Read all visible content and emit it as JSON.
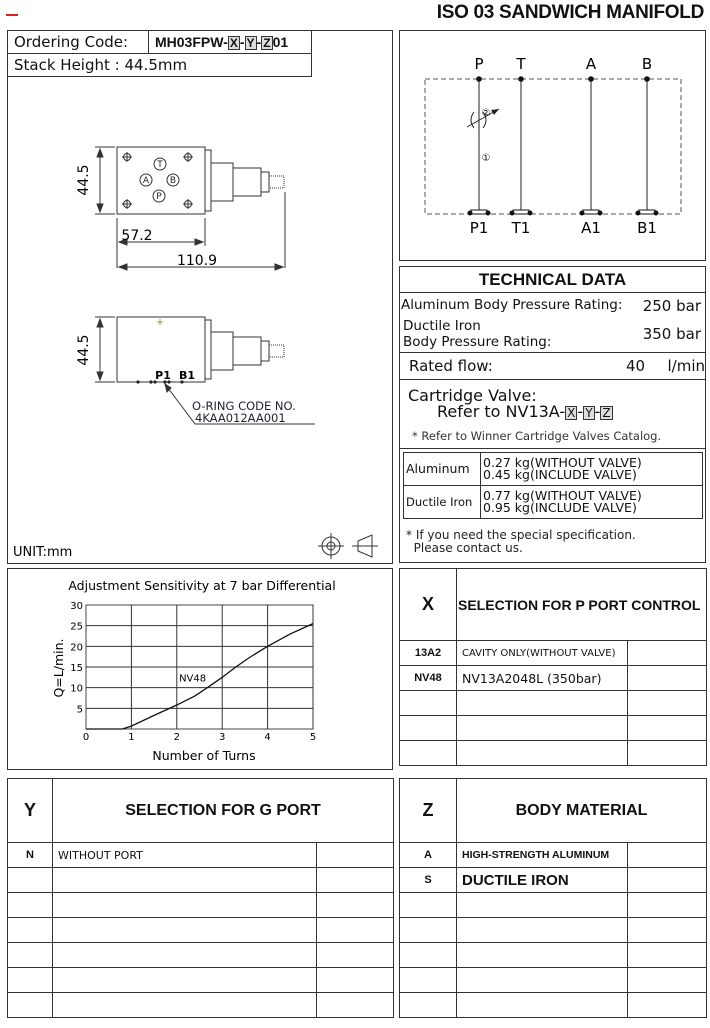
{
  "header": {
    "title": "ISO 03 SANDWICH MANIFOLD"
  },
  "ordering": {
    "label": "Ordering Code:",
    "code_prefix": "MH03FPW-",
    "x": "X",
    "y": "Y",
    "z": "Z",
    "code_suffix": "01",
    "sep": "-",
    "stack_height": "Stack Height : 44.5mm"
  },
  "drawing": {
    "dim_height_top": "44.5",
    "dim_width": "57.2",
    "dim_length": "110.9",
    "dim_height_side": "44.5",
    "port_t": "T",
    "port_a": "A",
    "port_b": "B",
    "port_p": "P",
    "side_p1": "P1",
    "side_b1": "B1",
    "oring_label": "O-RING CODE NO.",
    "oring_code": "4KAA012AA001",
    "unit": "UNIT:mm"
  },
  "schematic": {
    "top_ports": [
      "P",
      "T",
      "A",
      "B"
    ],
    "bottom_ports": [
      "P1",
      "T1",
      "A1",
      "B1"
    ],
    "mark_2": "②",
    "mark_1": "①"
  },
  "technical": {
    "title": "TECHNICAL DATA",
    "al_pressure_label": "Aluminum Body Pressure Rating:",
    "al_pressure_value": "250 bar",
    "di_pressure_label_1": "Ductile Iron",
    "di_pressure_label_2": "Body Pressure Rating:",
    "di_pressure_value": "350 bar",
    "flow_label": "Rated flow:",
    "flow_value": "40",
    "flow_unit": "l/min",
    "cartridge_label": "Cartridge Valve:",
    "cartridge_ref": "Refer to NV13A-",
    "catalog_note": "* Refer to Winner Cartridge Valves Catalog.",
    "weights": [
      {
        "material": "Aluminum",
        "without": "0.27  kg(WITHOUT VALVE)",
        "include": "0.45  kg(INCLUDE VALVE)"
      },
      {
        "material": "Ductile Iron",
        "without": "0.77  kg(WITHOUT VALVE)",
        "include": "0.95  kg(INCLUDE VALVE)"
      }
    ],
    "special_note_1": "* If you need the special specification.",
    "special_note_2": "Please contact us."
  },
  "chart_data": {
    "type": "line",
    "title": "Adjustment Sensitivity at 7 bar Differential",
    "xlabel": "Number of Turns",
    "ylabel": "Q=L/min.",
    "xlim": [
      0,
      5
    ],
    "ylim": [
      0,
      30
    ],
    "xticks": [
      "0",
      "1",
      "2",
      "3",
      "4",
      "5"
    ],
    "yticks": [
      "5",
      "10",
      "15",
      "20",
      "25",
      "30"
    ],
    "grid": true,
    "series": [
      {
        "name": "NV48",
        "x": [
          0,
          0.8,
          1,
          1.5,
          2,
          2.4,
          2.7,
          3,
          3.3,
          3.6,
          4,
          4.5,
          5
        ],
        "y": [
          0,
          0,
          0.7,
          3.3,
          5.8,
          8,
          10.2,
          12.5,
          15,
          17.3,
          20,
          23,
          25.5
        ]
      }
    ]
  },
  "x_table": {
    "key": "X",
    "title": "SELECTION FOR P PORT CONTROL",
    "rows": [
      {
        "code": "13A2",
        "desc": "CAVITY ONLY(WITHOUT VALVE)"
      },
      {
        "code": "NV48",
        "desc": "NV13A2048L (350bar)"
      },
      {
        "code": "",
        "desc": ""
      },
      {
        "code": "",
        "desc": ""
      },
      {
        "code": "",
        "desc": ""
      }
    ]
  },
  "y_table": {
    "key": "Y",
    "title": "SELECTION FOR G PORT",
    "rows": [
      {
        "code": "N",
        "desc": "WITHOUT PORT"
      },
      {
        "code": "",
        "desc": ""
      },
      {
        "code": "",
        "desc": ""
      },
      {
        "code": "",
        "desc": ""
      },
      {
        "code": "",
        "desc": ""
      },
      {
        "code": "",
        "desc": ""
      },
      {
        "code": "",
        "desc": ""
      }
    ]
  },
  "z_table": {
    "key": "Z",
    "title": "BODY MATERIAL",
    "rows": [
      {
        "code": "A",
        "desc": "HIGH-STRENGTH ALUMINUM"
      },
      {
        "code": "S",
        "desc": "DUCTILE IRON"
      },
      {
        "code": "",
        "desc": ""
      },
      {
        "code": "",
        "desc": ""
      },
      {
        "code": "",
        "desc": ""
      },
      {
        "code": "",
        "desc": ""
      },
      {
        "code": "",
        "desc": ""
      }
    ]
  }
}
